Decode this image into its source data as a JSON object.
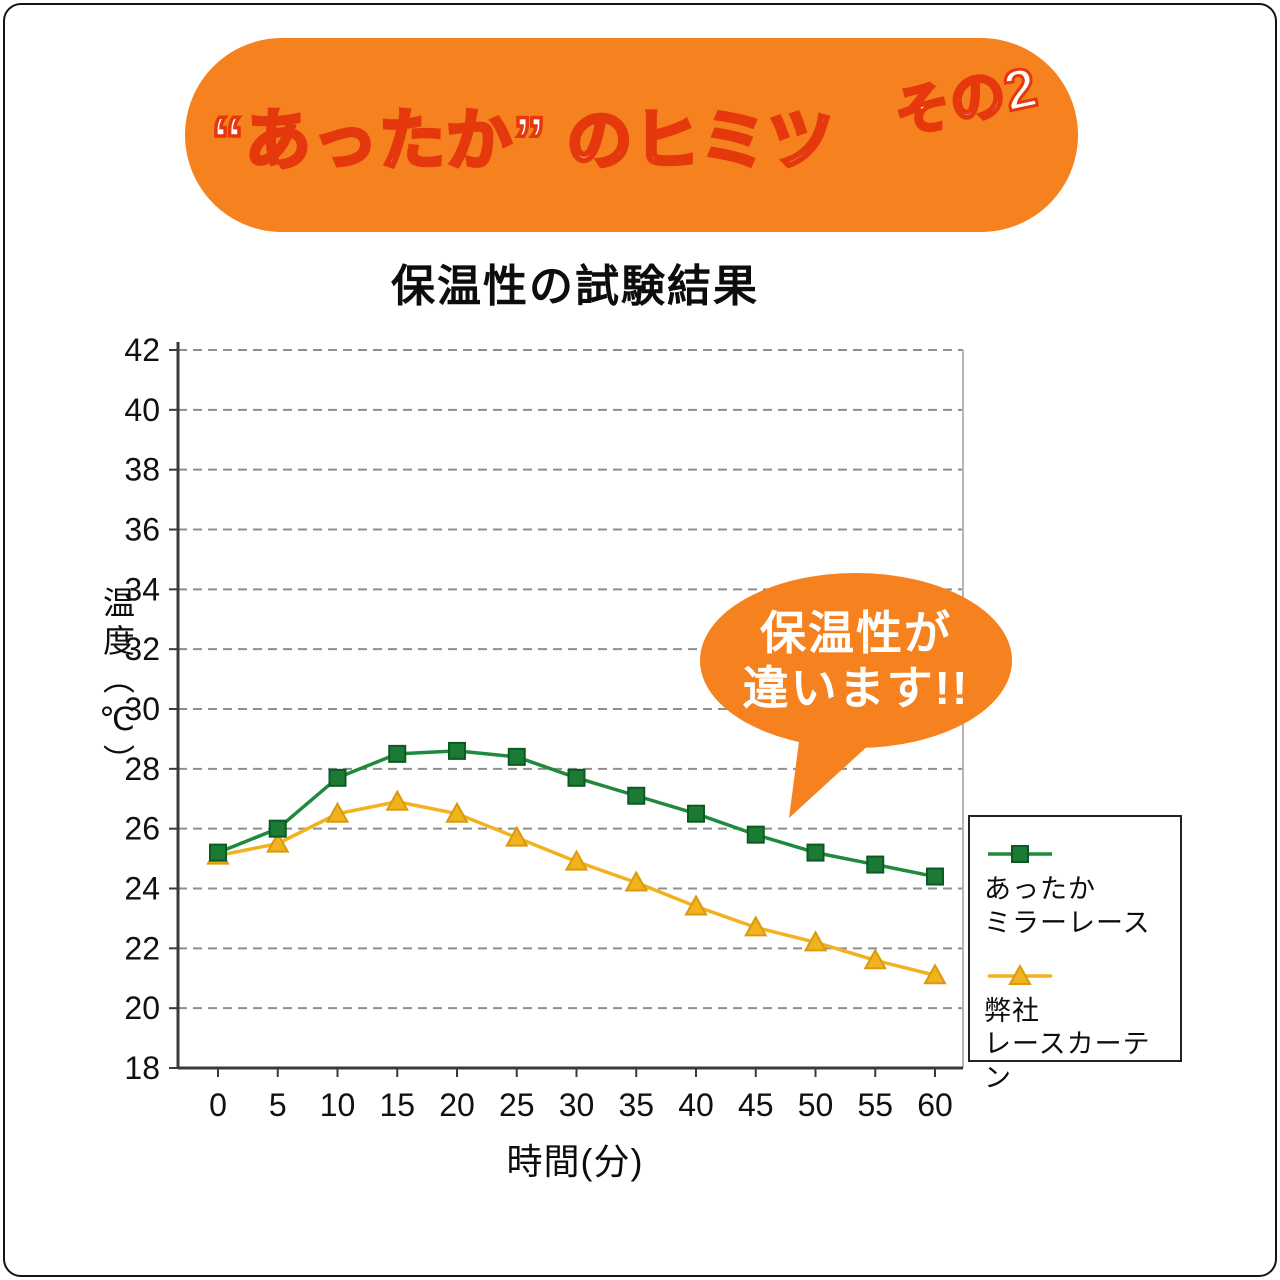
{
  "banner": {
    "title": "“あったか” のヒミツ",
    "badge": "その2",
    "bg_color": "#F5821F",
    "outline_color": "#E5380C"
  },
  "chart_title": "保温性の試験結果",
  "bubble": {
    "line1": "保温性が",
    "line2": "違います!!",
    "bg_color": "#F5821F"
  },
  "chart_data": {
    "type": "line",
    "x": [
      0,
      5,
      10,
      15,
      20,
      25,
      30,
      35,
      40,
      45,
      50,
      55,
      60
    ],
    "series": [
      {
        "name": "あったかミラーレース",
        "color": "#1F8A3B",
        "marker": "square",
        "marker_fill": "#1B7A33",
        "marker_edge": "#0B5A22",
        "values": [
          25.2,
          26.0,
          27.7,
          28.5,
          28.6,
          28.4,
          27.7,
          27.1,
          26.5,
          25.8,
          25.2,
          24.8,
          24.4
        ]
      },
      {
        "name": "弊社レースカーテン",
        "color": "#F2B21E",
        "marker": "triangle",
        "marker_fill": "#F2B21E",
        "marker_edge": "#D89A0E",
        "values": [
          25.1,
          25.5,
          26.5,
          26.9,
          26.5,
          25.7,
          24.9,
          24.2,
          23.4,
          22.7,
          22.2,
          21.6,
          21.1
        ]
      }
    ],
    "xlabel": "時間(分)",
    "ylabel": "温度（℃）",
    "ylim": [
      18,
      42
    ],
    "ytick_step": 2,
    "grid": "horizontal-dashed",
    "legend_position": "right-bottom-outside"
  },
  "legend": {
    "items": [
      {
        "lines": [
          "あったか",
          "ミラーレース"
        ]
      },
      {
        "lines": [
          "弊社",
          "レースカーテン"
        ]
      }
    ]
  }
}
